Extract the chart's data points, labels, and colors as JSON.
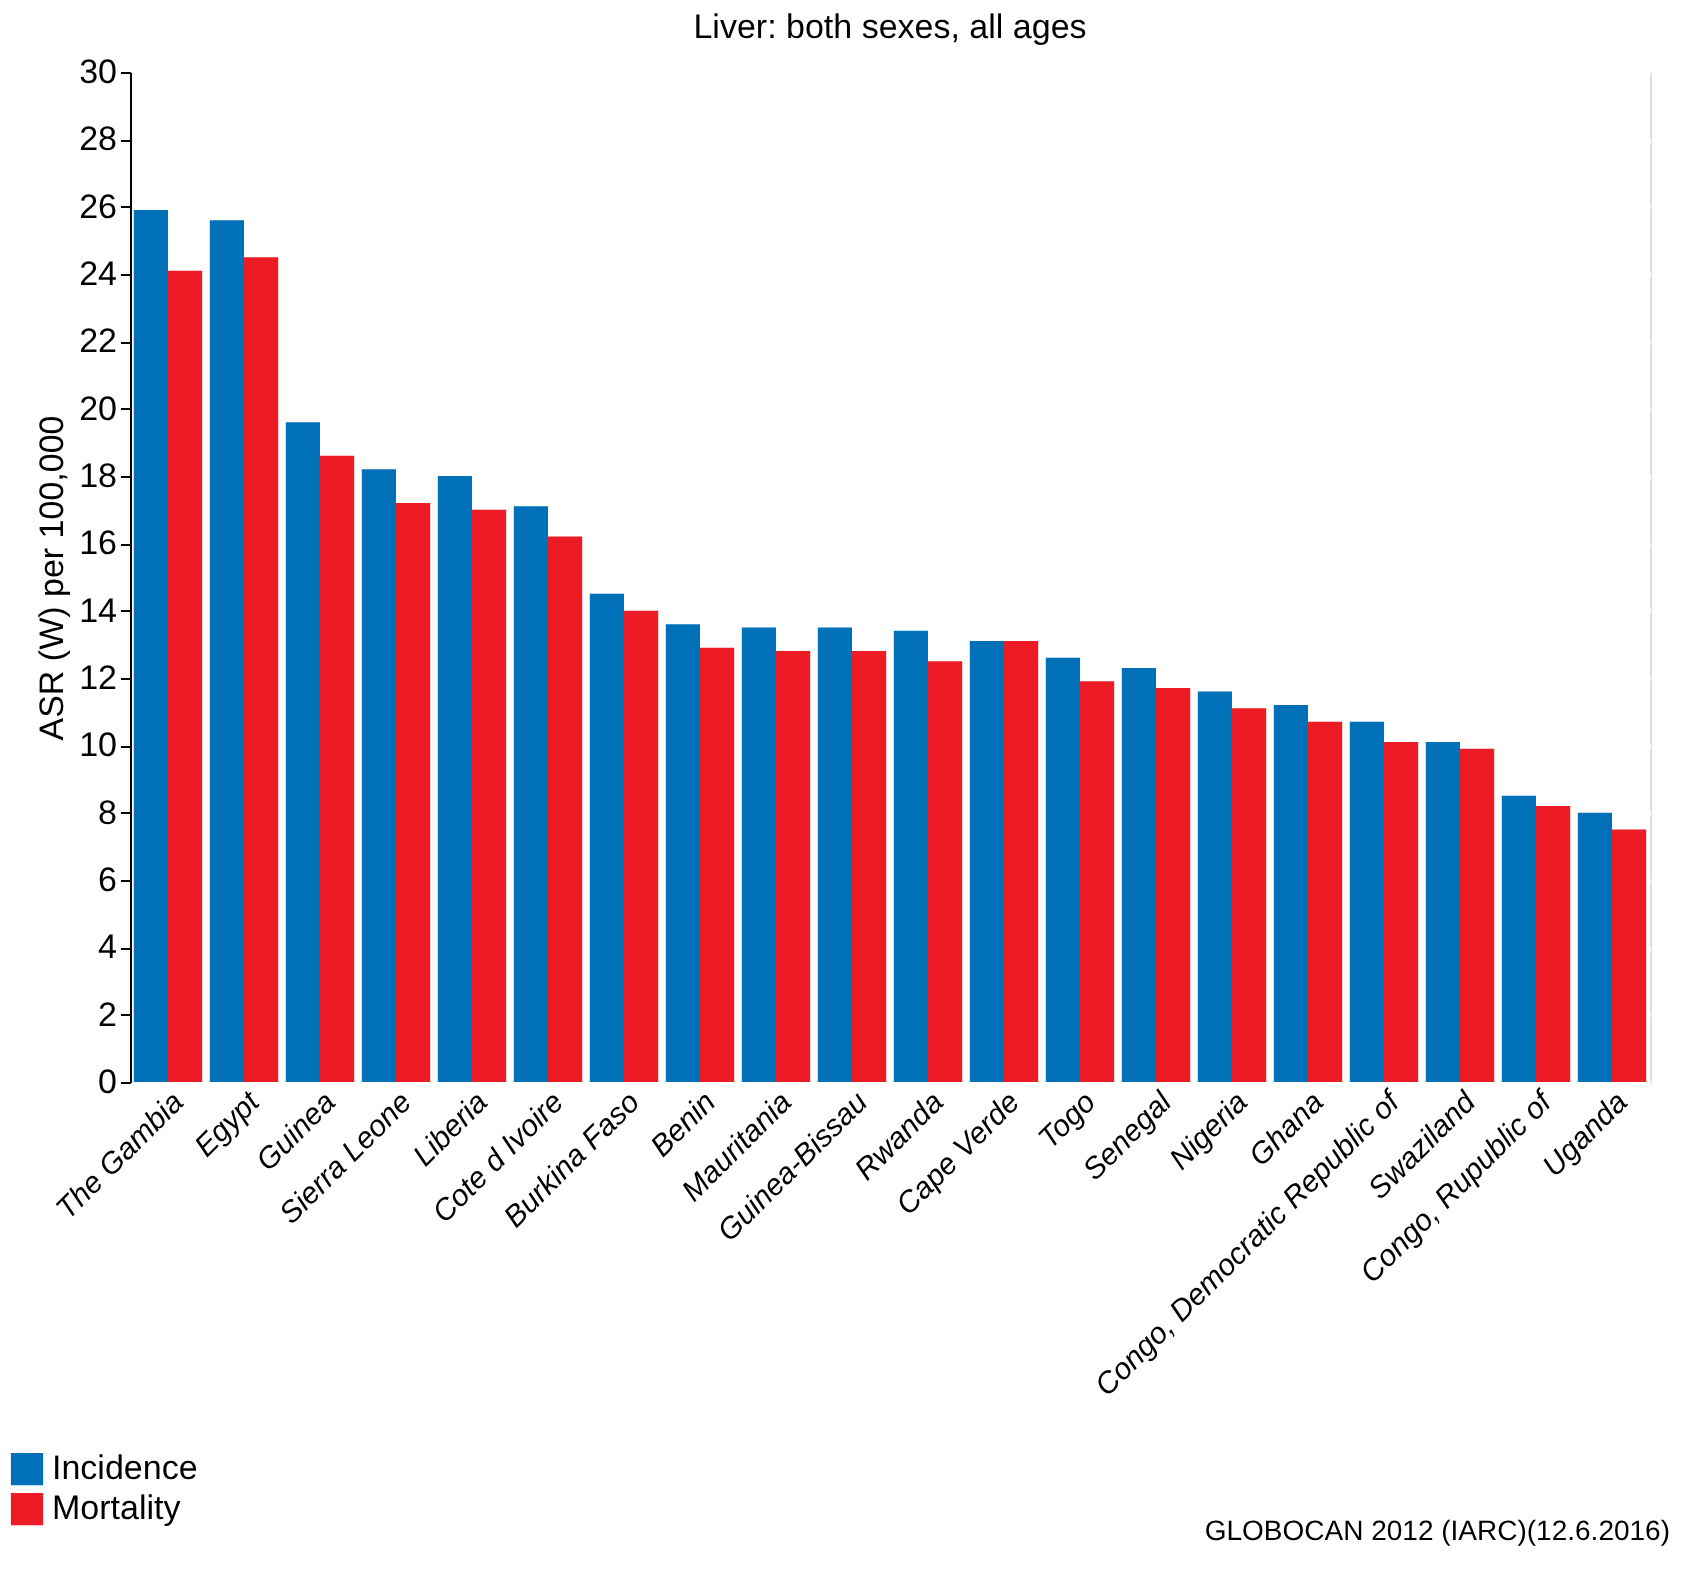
{
  "chart_data": {
    "type": "bar",
    "title": "Liver: both sexes, all ages",
    "ylabel": "ASR (W) per 100,000",
    "categories": [
      "The Gambia",
      "Egypt",
      "Guinea",
      "Sierra Leone",
      "Liberia",
      "Cote d Ivoire",
      "Burkina Faso",
      "Benin",
      "Mauritania",
      "Guinea-Bissau",
      "Rwanda",
      "Cape Verde",
      "Togo",
      "Senegal",
      "Nigeria",
      "Ghana",
      "Congo, Democratic Republic of",
      "Swaziland",
      "Congo, Rupublic of",
      "Uganda"
    ],
    "series": [
      {
        "name": "Incidence",
        "color": "#0070b8",
        "values": [
          25.9,
          25.6,
          19.6,
          18.2,
          18.0,
          17.1,
          14.5,
          13.6,
          13.5,
          13.5,
          13.4,
          13.1,
          12.6,
          12.3,
          11.6,
          11.2,
          10.7,
          10.1,
          8.5,
          8.0
        ]
      },
      {
        "name": "Mortality",
        "color": "#ed1c24",
        "values": [
          24.1,
          24.5,
          18.6,
          17.2,
          17.0,
          16.2,
          14.0,
          12.9,
          12.8,
          12.8,
          12.5,
          13.1,
          11.9,
          11.7,
          11.1,
          10.7,
          10.1,
          9.9,
          8.2,
          7.5
        ]
      }
    ],
    "ylim": [
      0,
      30
    ],
    "yticks": [
      0,
      2,
      4,
      6,
      8,
      10,
      12,
      14,
      16,
      18,
      20,
      22,
      24,
      26,
      28,
      30
    ],
    "grid": "y",
    "legend": "bottom left",
    "annotations": [
      "GLOBOCAN 2012 (IARC)(12.6.2016)"
    ]
  }
}
